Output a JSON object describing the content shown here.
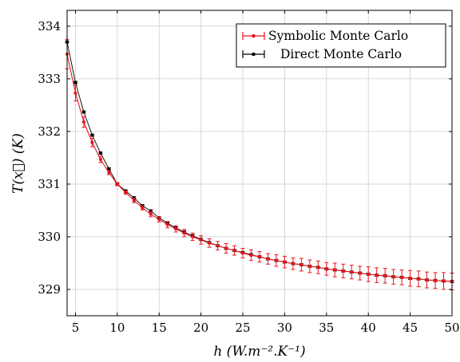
{
  "chart_data": {
    "type": "line",
    "xlabel": "h (W.m⁻².K⁻¹)",
    "ylabel": "T(x⃗) (K)",
    "xlim": [
      4,
      50
    ],
    "ylim": [
      328.5,
      334.3
    ],
    "xticks": [
      5,
      10,
      15,
      20,
      25,
      30,
      35,
      40,
      45,
      50
    ],
    "yticks": [
      329,
      330,
      331,
      332,
      333,
      334
    ],
    "grid": true,
    "legend_position": "top-right",
    "series": [
      {
        "name": "Symbolic Monte Carlo",
        "color": "#e8141b",
        "x": [
          4,
          5,
          6,
          7,
          8,
          9,
          10,
          11,
          12,
          13,
          14,
          15,
          16,
          17,
          18,
          19,
          20,
          21,
          22,
          23,
          24,
          25,
          26,
          27,
          28,
          29,
          30,
          31,
          32,
          33,
          34,
          35,
          36,
          37,
          38,
          39,
          40,
          41,
          42,
          43,
          44,
          45,
          46,
          47,
          48,
          49,
          50
        ],
        "y": [
          333.47,
          332.73,
          332.18,
          331.79,
          331.47,
          331.22,
          331.0,
          330.84,
          330.69,
          330.55,
          330.43,
          330.33,
          330.23,
          330.15,
          330.07,
          330.0,
          329.94,
          329.88,
          329.83,
          329.78,
          329.74,
          329.69,
          329.65,
          329.62,
          329.58,
          329.55,
          329.52,
          329.49,
          329.47,
          329.44,
          329.42,
          329.39,
          329.37,
          329.35,
          329.33,
          329.31,
          329.29,
          329.27,
          329.26,
          329.24,
          329.23,
          329.21,
          329.2,
          329.18,
          329.17,
          329.16,
          329.15
        ],
        "err": [
          0.28,
          0.15,
          0.1,
          0.08,
          0.06,
          0.04,
          0.03,
          0.03,
          0.04,
          0.04,
          0.05,
          0.05,
          0.06,
          0.06,
          0.07,
          0.07,
          0.08,
          0.08,
          0.08,
          0.09,
          0.09,
          0.09,
          0.1,
          0.1,
          0.1,
          0.11,
          0.11,
          0.11,
          0.12,
          0.12,
          0.12,
          0.12,
          0.13,
          0.13,
          0.13,
          0.13,
          0.14,
          0.14,
          0.14,
          0.14,
          0.14,
          0.15,
          0.15,
          0.15,
          0.15,
          0.16,
          0.16
        ]
      },
      {
        "name": "Direct Monte Carlo",
        "color": "#000000",
        "x": [
          4,
          5,
          6,
          7,
          8,
          9,
          10,
          11,
          12,
          13,
          14,
          15,
          16,
          17,
          18,
          19,
          20,
          21,
          22,
          23,
          24,
          25,
          26,
          27,
          28,
          29,
          30,
          31,
          32,
          33,
          34,
          35,
          36,
          37,
          38,
          39,
          40,
          41,
          42,
          43,
          44,
          45,
          46,
          47,
          48,
          49,
          50
        ],
        "y": [
          333.7,
          332.93,
          332.37,
          331.93,
          331.59,
          331.29,
          331.0,
          330.87,
          330.74,
          330.59,
          330.49,
          330.36,
          330.26,
          330.17,
          330.09,
          330.02,
          329.95,
          329.89,
          329.83,
          329.78,
          329.74,
          329.7,
          329.66,
          329.62,
          329.58,
          329.55,
          329.52,
          329.49,
          329.47,
          329.44,
          329.42,
          329.39,
          329.37,
          329.35,
          329.33,
          329.31,
          329.29,
          329.27,
          329.26,
          329.24,
          329.23,
          329.21,
          329.2,
          329.18,
          329.17,
          329.16,
          329.15
        ],
        "err": [
          0.02,
          0.02,
          0.02,
          0.02,
          0.02,
          0.02,
          0.02,
          0.02,
          0.02,
          0.02,
          0.02,
          0.02,
          0.02,
          0.02,
          0.02,
          0.02,
          0.02,
          0.02,
          0.02,
          0.02,
          0.02,
          0.02,
          0.02,
          0.02,
          0.02,
          0.02,
          0.02,
          0.02,
          0.02,
          0.02,
          0.02,
          0.02,
          0.02,
          0.02,
          0.02,
          0.02,
          0.02,
          0.02,
          0.02,
          0.02,
          0.02,
          0.02,
          0.02,
          0.02,
          0.02,
          0.02,
          0.02
        ]
      }
    ]
  }
}
